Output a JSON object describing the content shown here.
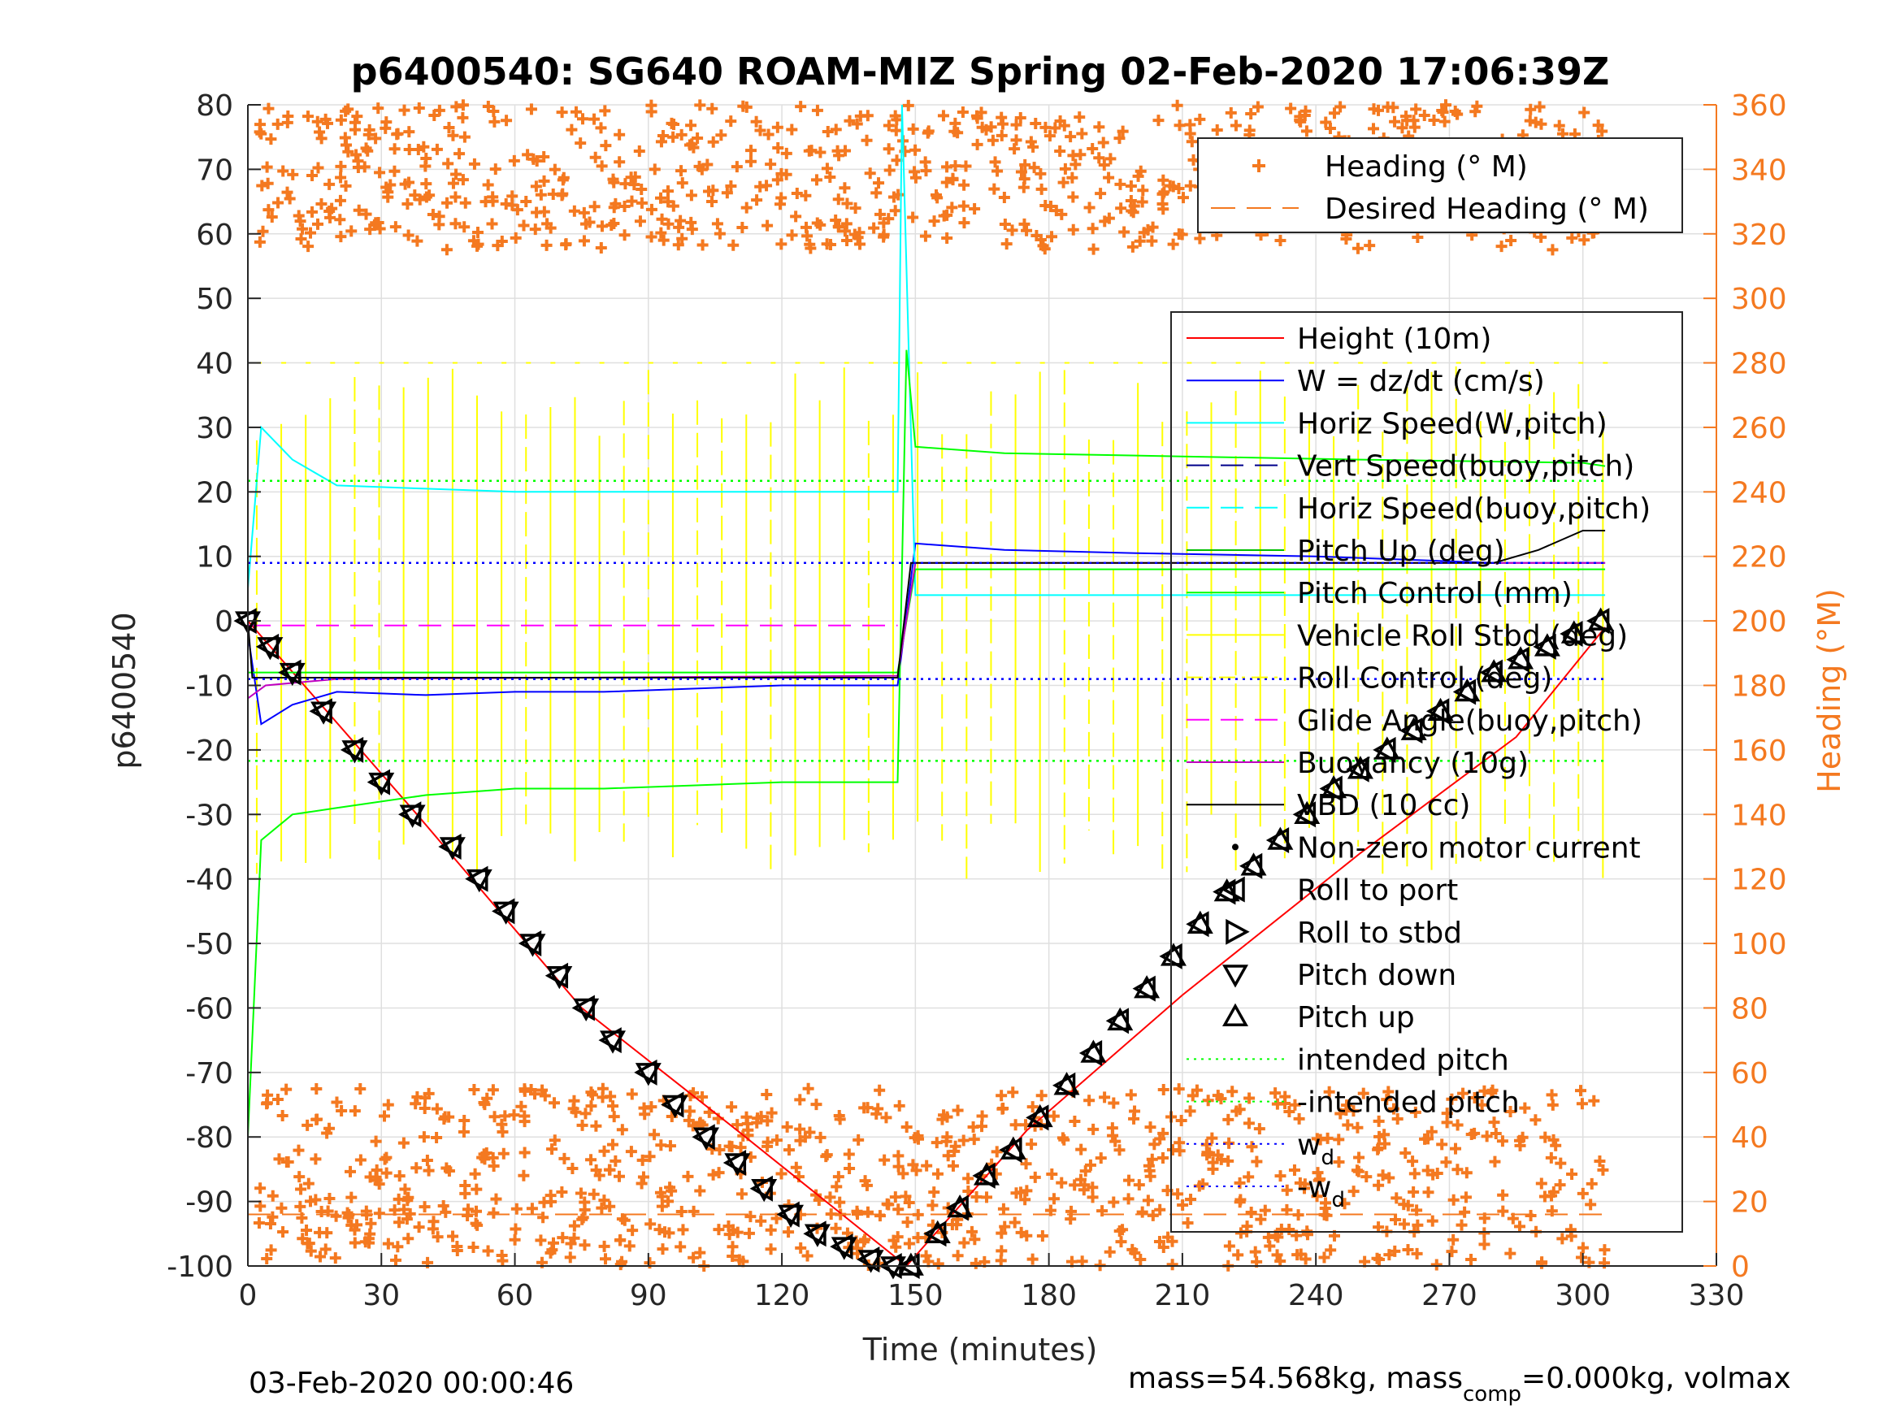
{
  "chart_data": {
    "type": "line",
    "title": "p6400540: SG640 ROAM-MIZ Spring 02-Feb-2020 17:06:39Z",
    "xlabel": "Time (minutes)",
    "ylabel": "p6400540",
    "y2label": "Heading (°M)",
    "xlim": [
      0,
      330
    ],
    "ylim": [
      -100,
      80
    ],
    "y2lim": [
      0,
      360
    ],
    "xticks": [
      "0",
      "30",
      "60",
      "90",
      "120",
      "150",
      "180",
      "210",
      "240",
      "270",
      "300",
      "330"
    ],
    "yticks": [
      "80",
      "70",
      "60",
      "50",
      "40",
      "30",
      "20",
      "10",
      "0",
      "-10",
      "-20",
      "-30",
      "-40",
      "-50",
      "-60",
      "-70",
      "-80",
      "-90",
      "-100"
    ],
    "y2ticks": [
      "360",
      "340",
      "320",
      "300",
      "280",
      "260",
      "240",
      "220",
      "200",
      "180",
      "160",
      "140",
      "120",
      "100",
      "80",
      "60",
      "40",
      "20",
      "0"
    ],
    "grid": true,
    "footer_left": "03-Feb-2020 00:00:46",
    "footer_right_parts": [
      "mass=54.568kg, mass",
      "comp",
      "=0.000kg, volmax"
    ],
    "heading_legend": [
      {
        "label": "Heading (° M)",
        "color": "#f47920",
        "style": "plus"
      },
      {
        "label": "Desired Heading (° M)",
        "color": "#f47920",
        "style": "dash"
      }
    ],
    "legend": [
      {
        "label": "Height (10m)",
        "color": "#ff0000",
        "style": "solid"
      },
      {
        "label": "W = dz/dt (cm/s)",
        "color": "#0000ff",
        "style": "solid"
      },
      {
        "label": "Horiz Speed(W,pitch)",
        "color": "#00ffff",
        "style": "solid"
      },
      {
        "label": "Vert Speed(buoy,pitch)",
        "color": "#00008b",
        "style": "dash"
      },
      {
        "label": "Horiz Speed(buoy,pitch)",
        "color": "#00ffff",
        "style": "dash"
      },
      {
        "label": "Pitch Up (deg)",
        "color": "#00c000",
        "style": "solid"
      },
      {
        "label": "Pitch Control (mm)",
        "color": "#00ff00",
        "style": "solid"
      },
      {
        "label": "Vehicle Roll Stbd (deg)",
        "color": "#ffff00",
        "style": "solid"
      },
      {
        "label": "Roll Control (deg)",
        "color": "#ffff00",
        "style": "dashdot"
      },
      {
        "label": "Glide Angle(buoy,pitch)",
        "color": "#ff00ff",
        "style": "dash"
      },
      {
        "label": "Buoyancy (10g)",
        "color": "#c000c0",
        "style": "solid"
      },
      {
        "label": "VBD (10 cc)",
        "color": "#000000",
        "style": "solid"
      },
      {
        "label": "Non-zero motor current",
        "color": "#000000",
        "style": "dot"
      },
      {
        "label": "Roll to port",
        "color": "#000000",
        "style": "tri-left"
      },
      {
        "label": "Roll to stbd",
        "color": "#000000",
        "style": "tri-right"
      },
      {
        "label": "Pitch down",
        "color": "#000000",
        "style": "tri-down"
      },
      {
        "label": "Pitch up",
        "color": "#000000",
        "style": "tri-up"
      },
      {
        "label": "intended pitch",
        "color": "#00ff00",
        "style": "dotted"
      },
      {
        "label": "-intended pitch",
        "color": "#00ff00",
        "style": "dotted"
      },
      {
        "label": "w",
        "sub": "d",
        "color": "#0000ff",
        "style": "dotted"
      },
      {
        "label": "-w",
        "sub": "d",
        "color": "#0000ff",
        "style": "dotted"
      }
    ],
    "series": [
      {
        "name": "Height (10m)",
        "color": "#ff0000",
        "x": [
          0,
          38,
          75,
          110,
          148,
          175,
          210,
          250,
          285,
          305
        ],
        "y": [
          0,
          -30,
          -60,
          -79,
          -100,
          -79,
          -58,
          -36,
          -18,
          -1
        ]
      },
      {
        "name": "W = dz/dt (cm/s)",
        "color": "#0000ff",
        "x": [
          0,
          3,
          10,
          20,
          40,
          60,
          80,
          100,
          120,
          146,
          150,
          170,
          200,
          240,
          280,
          305
        ],
        "y": [
          -2,
          -16,
          -13,
          -11,
          -11.5,
          -11,
          -11,
          -10.5,
          -10,
          -10,
          12,
          11,
          10.5,
          10,
          9,
          9
        ]
      },
      {
        "name": "Horiz Speed(W,pitch)",
        "color": "#00ffff",
        "x": [
          0,
          3,
          10,
          20,
          40,
          60,
          80,
          100,
          120,
          146,
          147,
          150,
          170,
          210,
          250,
          300,
          305
        ],
        "y": [
          5,
          30,
          25,
          21,
          20.5,
          20,
          20,
          20,
          20,
          20,
          80,
          4,
          4,
          4,
          4,
          4,
          4
        ]
      },
      {
        "name": "Pitch Up (deg)",
        "color": "#00ff00",
        "x": [
          0,
          3,
          10,
          20,
          40,
          60,
          80,
          100,
          120,
          146,
          148,
          150,
          170,
          210,
          250,
          300,
          305
        ],
        "y": [
          -80,
          -34,
          -30,
          -29,
          -27,
          -26,
          -26,
          -25.5,
          -25,
          -25,
          42,
          27,
          26,
          25.5,
          25,
          24.5,
          24
        ]
      },
      {
        "name": "Pitch Control (mm)",
        "color": "#00ff00",
        "x": [
          0,
          10,
          146,
          150,
          305
        ],
        "y": [
          -8,
          -8,
          -8,
          8,
          8
        ]
      },
      {
        "name": "Glide Angle(buoy,pitch)",
        "color": "#ff00ff",
        "x": [
          0,
          146
        ],
        "y": [
          -0.7,
          -0.7
        ]
      },
      {
        "name": "Buoyancy (10g)",
        "color": "#c000c0",
        "x": [
          0,
          4,
          20,
          146,
          150,
          305
        ],
        "y": [
          -12,
          -10,
          -9,
          -8.5,
          9,
          9
        ]
      },
      {
        "name": "VBD (10 cc)",
        "color": "#000000",
        "x": [
          0,
          1,
          146,
          149,
          280,
          290,
          300,
          305
        ],
        "y": [
          0,
          -8.8,
          -8.8,
          9,
          9,
          11,
          14,
          14
        ]
      },
      {
        "name": "intended pitch",
        "color": "#00ff00",
        "x": [
          0,
          305
        ],
        "y": [
          21.7,
          21.7
        ]
      },
      {
        "name": "-intended pitch",
        "color": "#00ff00",
        "x": [
          0,
          305
        ],
        "y": [
          -21.7,
          -21.7
        ]
      },
      {
        "name": "w",
        "color": "#0000ff",
        "x": [
          0,
          305
        ],
        "y": [
          9,
          9
        ]
      },
      {
        "name": "-w",
        "color": "#0000ff",
        "x": [
          0,
          305
        ],
        "y": [
          -9,
          -9
        ]
      },
      {
        "name": "Desired Heading (° M)",
        "color": "#f47920",
        "axis": "right",
        "x": [
          0,
          305
        ],
        "y": [
          16,
          16
        ]
      }
    ],
    "markers": {
      "pitch_markers_x": [
        0,
        5,
        10,
        17,
        24,
        30,
        37,
        46,
        52,
        58,
        64,
        70,
        76,
        82,
        90,
        96,
        103,
        110,
        116,
        122,
        128,
        134,
        140,
        145,
        149,
        155,
        160,
        166,
        172,
        178,
        184,
        190,
        196,
        202,
        208,
        214,
        220,
        226,
        232,
        238,
        244,
        250,
        256,
        262,
        268,
        274,
        280,
        286,
        292,
        298,
        304
      ],
      "pitch_markers_y": [
        0,
        -4,
        -8,
        -14,
        -20,
        -25,
        -30,
        -35,
        -40,
        -45,
        -50,
        -55,
        -60,
        -65,
        -70,
        -75,
        -80,
        -84,
        -88,
        -92,
        -95,
        -97,
        -99,
        -100,
        -100,
        -95,
        -91,
        -86,
        -82,
        -77,
        -72,
        -67,
        -62,
        -57,
        -52,
        -47,
        -42,
        -38,
        -34,
        -30,
        -26,
        -23,
        -20,
        -17,
        -14,
        -11,
        -8,
        -6,
        -4,
        -2,
        0
      ]
    },
    "heading_bands": {
      "upper_center_deg": 345,
      "lower_center_deg": 25
    },
    "roll_control_limits": [
      -40,
      40
    ]
  }
}
